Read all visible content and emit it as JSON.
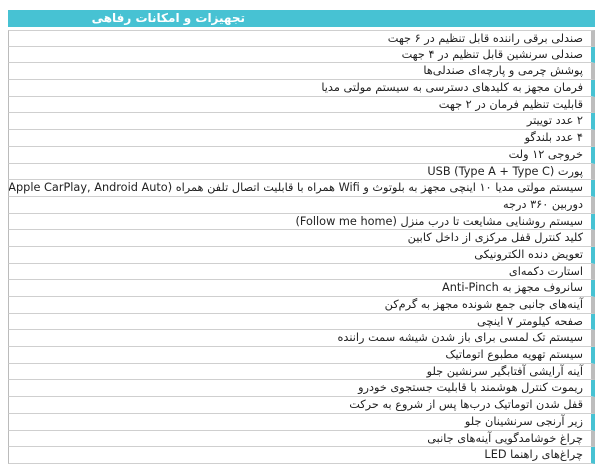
{
  "title": "تجهیزات و امکانات رفاهی",
  "accent_color": "#47c2d3",
  "items": [
    "صندلی برقی راننده قابل تنظیم در ۶ جهت",
    "صندلی سرنشین قابل تنظیم در ۴ جهت",
    "پوشش چرمی و پارچه‌ای صندلی‌ها",
    "فرمان مجهز به کلیدهای دسترسی به سیستم مولتی مدیا",
    "قابلیت تنظیم فرمان در ۲ جهت",
    "۲ عدد توییتر",
    "۴ عدد بلندگو",
    "خروجی ۱۲ ولت",
    "پورت USB (Type A + Type C)",
    "سیستم مولتی مدیا ۱۰ اینچی مجهز به بلوتوث و Wifi همراه با قابلیت اتصال تلفن همراه (Apple CarPlay, Android Auto)",
    "دوربین ۳۶۰ درجه",
    "سیستم روشنایی مشایعت تا درب منزل (Follow me home)",
    "کلید کنترل قفل مرکزی از داخل کابین",
    "تعویض دنده الکترونیکی",
    "استارت دکمه‌ای",
    "سانروف مجهز به Anti-Pinch",
    "آینه‌های جانبی جمع شونده مجهز به گرم‌کن",
    "صفحه کیلومتر ۷ اینچی",
    "سیستم تک لمسی برای باز شدن شیشه سمت راننده",
    "سیستم تهویه مطبوع اتوماتیک",
    "آینه آرایشی آفتابگیر سرنشین جلو",
    "ریموت کنترل هوشمند با قابلیت جستجوی خودرو",
    "قفل شدن اتوماتیک درب‌ها پس از شروع به حرکت",
    "زیر آرنجی سرنشینان جلو",
    "چراغ خوشامدگویی آینه‌های جانبی",
    "چراغ‌های راهنما LED"
  ]
}
